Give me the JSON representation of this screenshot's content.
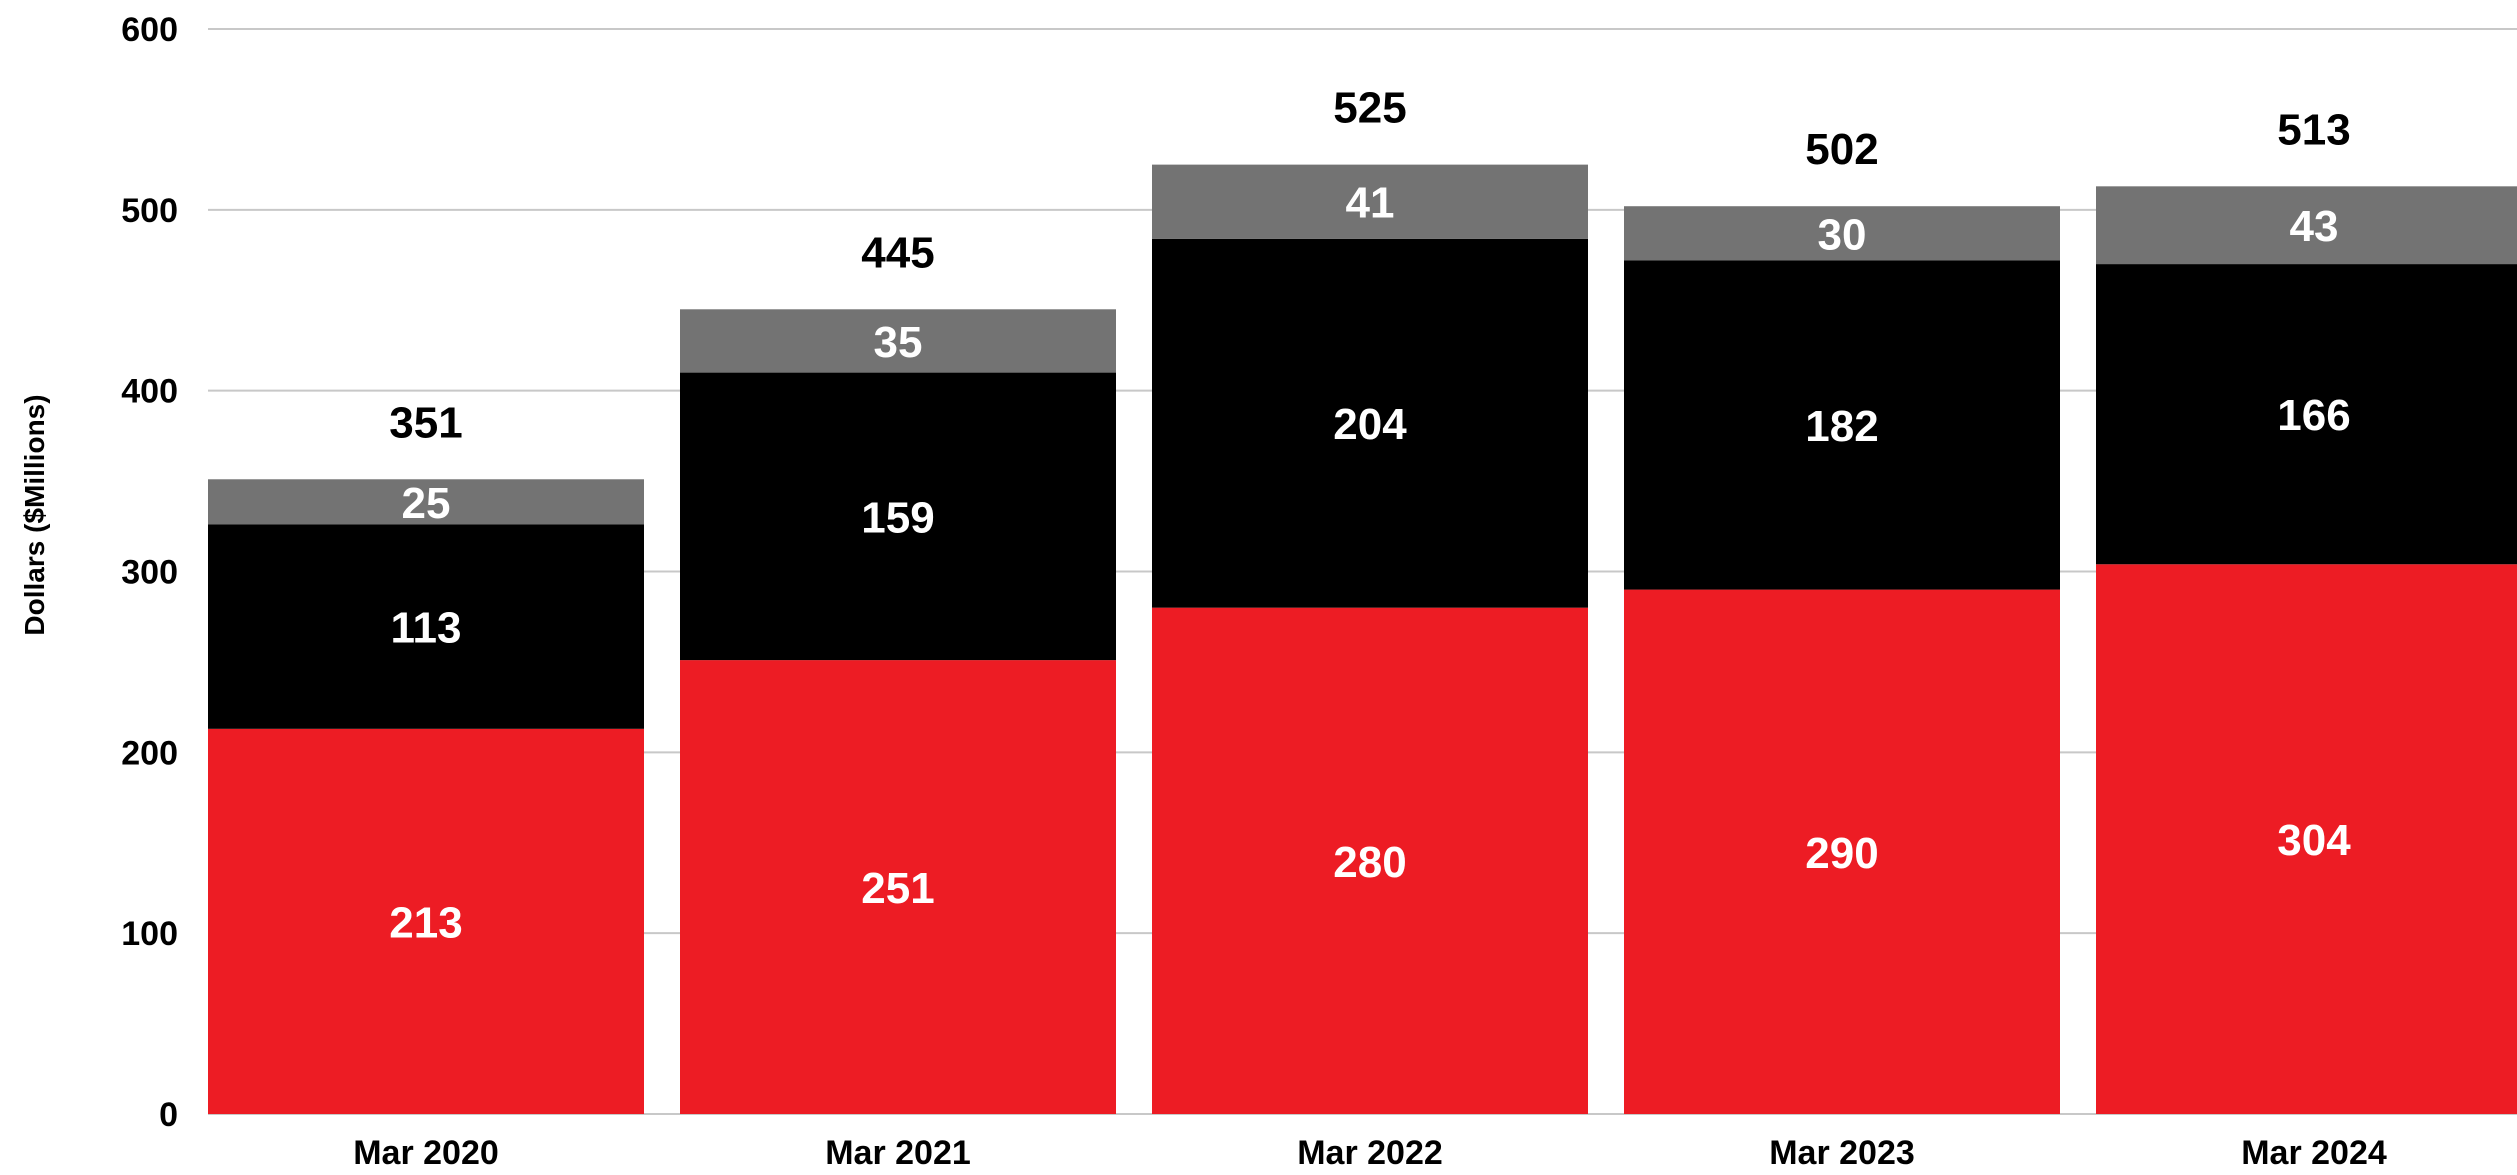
{
  "chart_data": {
    "type": "bar",
    "stacked": true,
    "categories": [
      "Mar 2020",
      "Mar 2021",
      "Mar 2022",
      "Mar 2023",
      "Mar 2024"
    ],
    "series": [
      {
        "values": [
          213,
          251,
          280,
          290,
          304
        ],
        "color": "#ed1c24"
      },
      {
        "values": [
          113,
          159,
          204,
          182,
          166
        ],
        "color": "#000000"
      },
      {
        "values": [
          25,
          35,
          41,
          30,
          43
        ],
        "color": "#737373"
      }
    ],
    "totals": [
      351,
      445,
      525,
      502,
      513
    ],
    "title": "",
    "xlabel": "",
    "ylabel": "Dollars ($Millions)",
    "ylim": [
      0,
      600
    ],
    "yticks": [
      0,
      100,
      200,
      300,
      400,
      500,
      600
    ],
    "grid": true,
    "gridColor": "#c8c8c8"
  }
}
